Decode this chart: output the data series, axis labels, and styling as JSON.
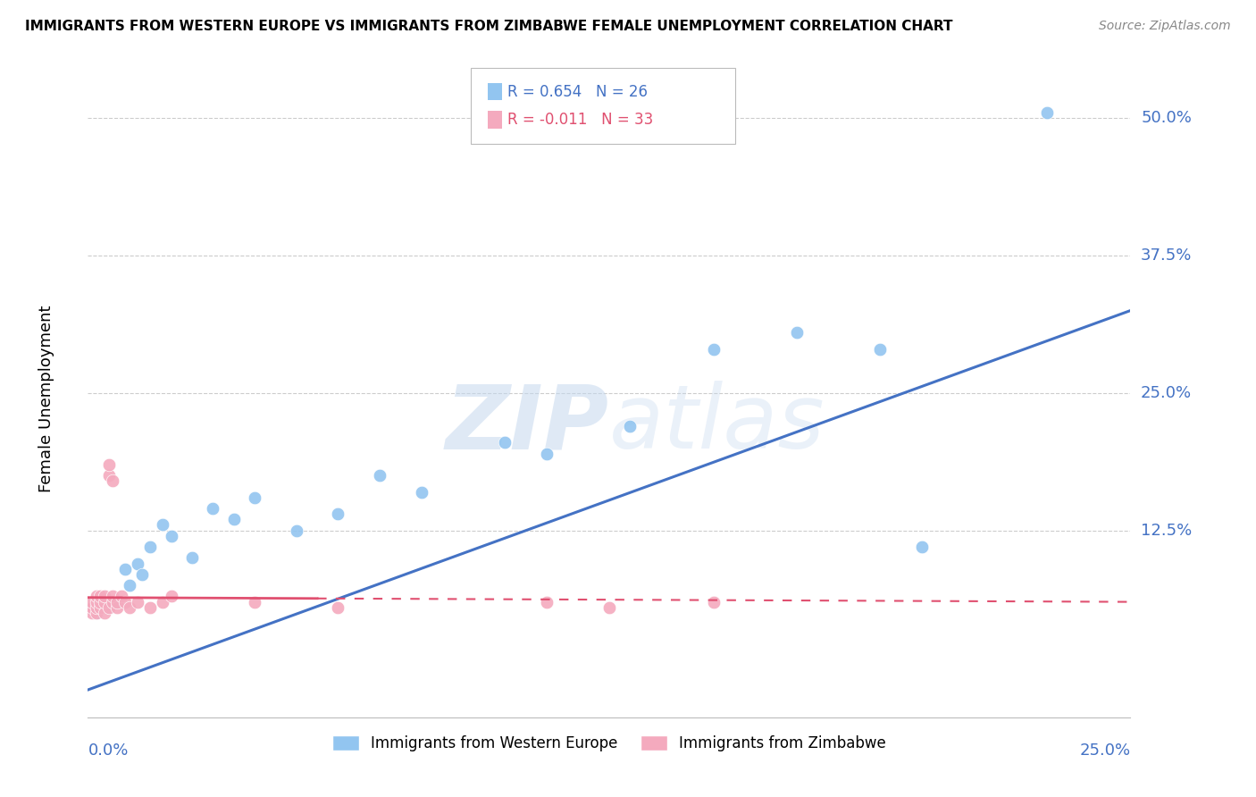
{
  "title": "IMMIGRANTS FROM WESTERN EUROPE VS IMMIGRANTS FROM ZIMBABWE FEMALE UNEMPLOYMENT CORRELATION CHART",
  "source": "Source: ZipAtlas.com",
  "ylabel": "Female Unemployment",
  "y_tick_vals": [
    0.125,
    0.25,
    0.375,
    0.5
  ],
  "y_tick_labels": [
    "12.5%",
    "25.0%",
    "37.5%",
    "50.0%"
  ],
  "x_lim": [
    0.0,
    0.25
  ],
  "y_lim": [
    -0.045,
    0.535
  ],
  "blue_R": 0.654,
  "blue_N": 26,
  "pink_R": -0.011,
  "pink_N": 33,
  "blue_color": "#92C5F0",
  "pink_color": "#F4AABE",
  "blue_line_color": "#4472C4",
  "pink_line_color": "#E05070",
  "watermark_color": "#D8E8F8",
  "background_color": "#FFFFFF",
  "grid_color": "#CCCCCC",
  "title_color": "#000000",
  "source_color": "#888888",
  "axis_label_color": "#4472C4",
  "blue_scatter_x": [
    0.002,
    0.005,
    0.007,
    0.009,
    0.01,
    0.012,
    0.013,
    0.015,
    0.018,
    0.02,
    0.025,
    0.03,
    0.035,
    0.04,
    0.05,
    0.06,
    0.07,
    0.08,
    0.1,
    0.11,
    0.13,
    0.15,
    0.17,
    0.19,
    0.2,
    0.23
  ],
  "blue_scatter_y": [
    0.05,
    0.055,
    0.06,
    0.09,
    0.075,
    0.095,
    0.085,
    0.11,
    0.13,
    0.12,
    0.1,
    0.145,
    0.135,
    0.155,
    0.125,
    0.14,
    0.175,
    0.16,
    0.205,
    0.195,
    0.22,
    0.29,
    0.305,
    0.29,
    0.11,
    0.505
  ],
  "pink_scatter_x": [
    0.001,
    0.001,
    0.001,
    0.002,
    0.002,
    0.002,
    0.002,
    0.003,
    0.003,
    0.003,
    0.004,
    0.004,
    0.004,
    0.005,
    0.005,
    0.005,
    0.006,
    0.006,
    0.006,
    0.007,
    0.007,
    0.008,
    0.009,
    0.01,
    0.012,
    0.015,
    0.018,
    0.02,
    0.04,
    0.06,
    0.11,
    0.125,
    0.15
  ],
  "pink_scatter_y": [
    0.05,
    0.055,
    0.06,
    0.05,
    0.055,
    0.06,
    0.065,
    0.055,
    0.06,
    0.065,
    0.05,
    0.06,
    0.065,
    0.055,
    0.175,
    0.185,
    0.17,
    0.06,
    0.065,
    0.055,
    0.06,
    0.065,
    0.06,
    0.055,
    0.06,
    0.055,
    0.06,
    0.065,
    0.06,
    0.055,
    0.06,
    0.055,
    0.06
  ],
  "blue_line_x0": 0.0,
  "blue_line_y0": -0.02,
  "blue_line_x1": 0.25,
  "blue_line_y1": 0.325,
  "pink_line_x0": 0.0,
  "pink_line_y0": 0.064,
  "pink_line_x1": 0.25,
  "pink_line_y1": 0.06
}
